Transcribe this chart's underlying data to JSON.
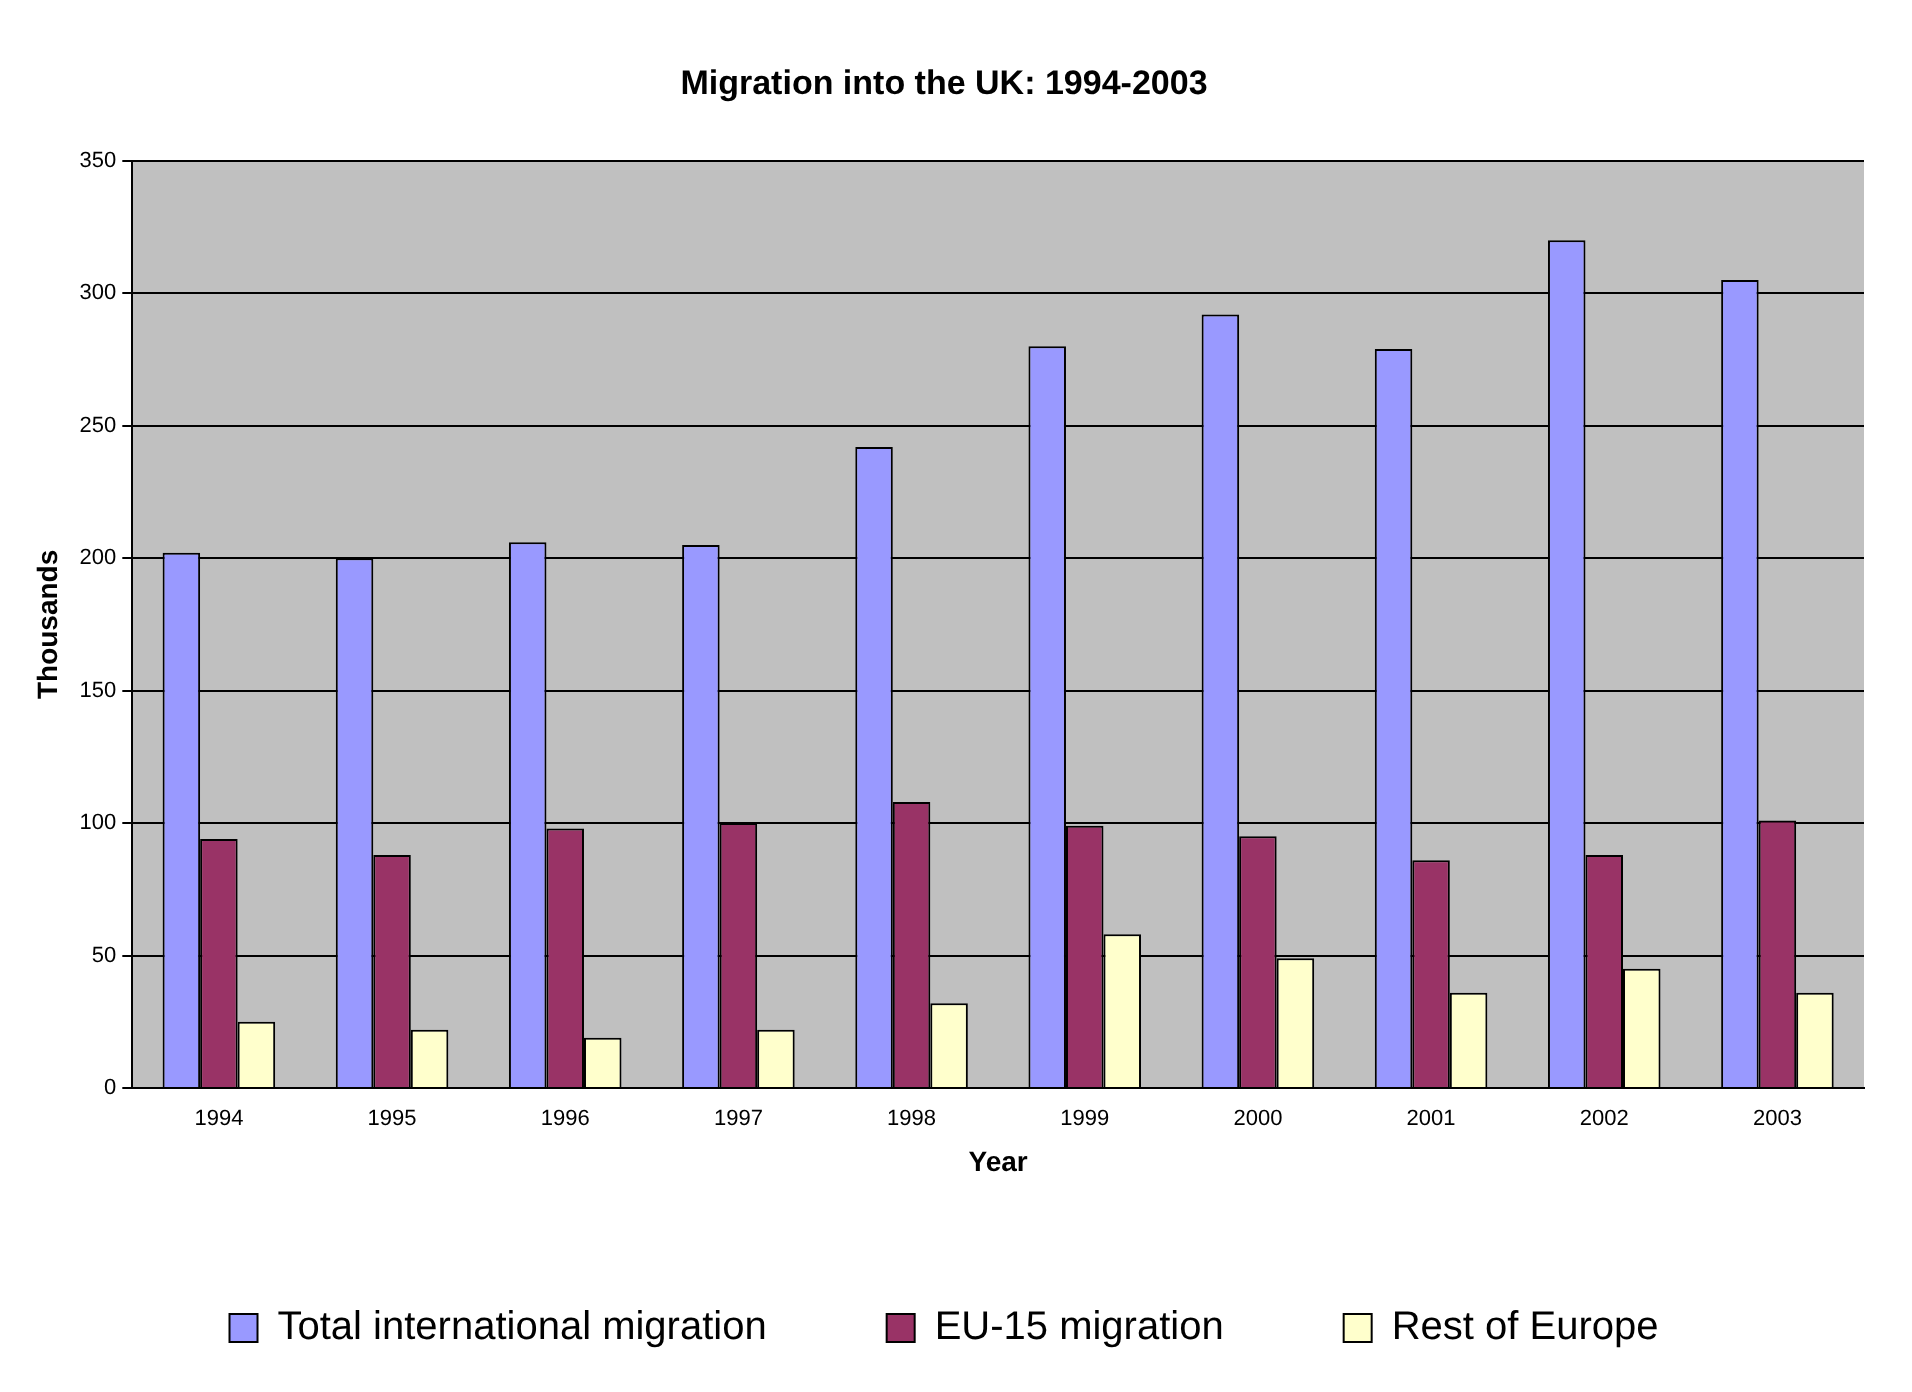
{
  "chart_data": {
    "type": "bar",
    "title": "Migration into the UK: 1994-2003",
    "xlabel": "Year",
    "ylabel": "Thousands",
    "categories": [
      "1994",
      "1995",
      "1996",
      "1997",
      "1998",
      "1999",
      "2000",
      "2001",
      "2002",
      "2003"
    ],
    "series": [
      {
        "name": "Total international migration",
        "color": "#9999ff",
        "values": [
          202,
          200,
          206,
          205,
          242,
          280,
          292,
          279,
          320,
          305
        ]
      },
      {
        "name": "EU-15 migration",
        "color": "#993366",
        "values": [
          94,
          88,
          98,
          100,
          108,
          99,
          95,
          86,
          88,
          101
        ]
      },
      {
        "name": "Rest of Europe",
        "color": "#ffffcc",
        "values": [
          25,
          22,
          19,
          22,
          32,
          58,
          49,
          36,
          45,
          36
        ]
      }
    ],
    "ylim": [
      0,
      350
    ],
    "yticks": [
      0,
      50,
      100,
      150,
      200,
      250,
      300,
      350
    ],
    "grid": "y",
    "legend": "bottom"
  }
}
